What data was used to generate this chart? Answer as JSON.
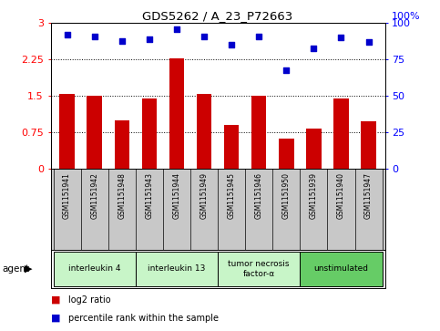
{
  "title": "GDS5262 / A_23_P72663",
  "samples": [
    "GSM1151941",
    "GSM1151942",
    "GSM1151948",
    "GSM1151943",
    "GSM1151944",
    "GSM1151949",
    "GSM1151945",
    "GSM1151946",
    "GSM1151950",
    "GSM1151939",
    "GSM1151940",
    "GSM1151947"
  ],
  "log2_ratio": [
    1.55,
    1.5,
    1.0,
    1.45,
    2.28,
    1.55,
    0.9,
    1.5,
    0.62,
    0.82,
    1.45,
    0.98
  ],
  "percentile_rank": [
    92,
    91,
    88,
    89,
    96,
    91,
    85,
    91,
    68,
    83,
    90,
    87
  ],
  "agents": [
    {
      "label": "interleukin 4",
      "start": 0,
      "end": 3,
      "color": "#c8f5c8"
    },
    {
      "label": "interleukin 13",
      "start": 3,
      "end": 6,
      "color": "#c8f5c8"
    },
    {
      "label": "tumor necrosis\nfactor-α",
      "start": 6,
      "end": 9,
      "color": "#c8f5c8"
    },
    {
      "label": "unstimulated",
      "start": 9,
      "end": 12,
      "color": "#66cc66"
    }
  ],
  "bar_color": "#cc0000",
  "dot_color": "#0000cc",
  "left_yticks": [
    0,
    0.75,
    1.5,
    2.25,
    3
  ],
  "right_yticks": [
    0,
    25,
    50,
    75,
    100
  ],
  "ylim_left": [
    0,
    3
  ],
  "ylim_right": [
    0,
    100
  ],
  "sample_bg": "#c8c8c8",
  "plot_bg": "#ffffff",
  "legend_items": [
    {
      "label": "log2 ratio",
      "color": "#cc0000"
    },
    {
      "label": "percentile rank within the sample",
      "color": "#0000cc"
    }
  ]
}
